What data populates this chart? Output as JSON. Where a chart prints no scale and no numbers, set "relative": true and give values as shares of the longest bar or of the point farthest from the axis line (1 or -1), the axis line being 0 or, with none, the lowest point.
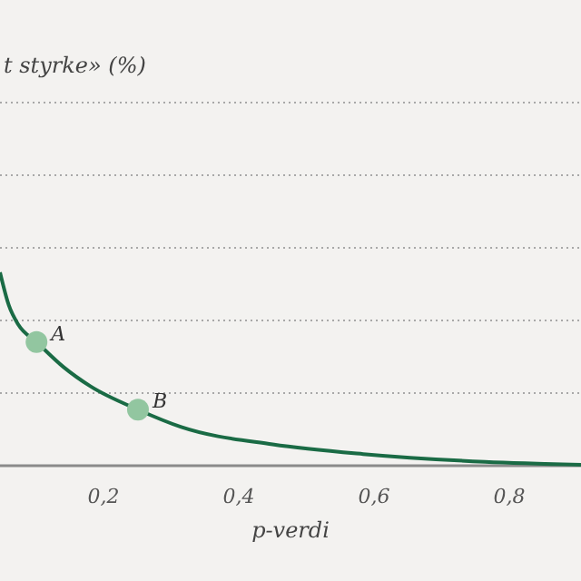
{
  "chart_data": {
    "type": "line",
    "relative": true,
    "xlabel": "p-verdi",
    "xlim": [
      0.047,
      0.906
    ],
    "xticks": [
      {
        "value": 0.2,
        "label": "0,2"
      },
      {
        "value": 0.4,
        "label": "0,4"
      },
      {
        "value": 0.6,
        "label": "0,6"
      },
      {
        "value": 0.8,
        "label": "0,8"
      }
    ],
    "tick_labels": "x",
    "ref_lines": [
      {
        "axis": "y",
        "value": 0.376,
        "color": "#a8a8a8",
        "line_style": "dotted"
      },
      {
        "axis": "y",
        "value": 0.751,
        "color": "#a8a8a8",
        "line_style": "dotted"
      },
      {
        "axis": "y",
        "value": 1.127,
        "color": "#a8a8a8",
        "line_style": "dotted"
      },
      {
        "axis": "y",
        "value": 1.502,
        "color": "#a8a8a8",
        "line_style": "dotted"
      },
      {
        "axis": "y",
        "value": 1.878,
        "color": "#a8a8a8",
        "line_style": "dotted"
      }
    ],
    "series": [
      {
        "color": "#1a6b45",
        "marker": "none",
        "x": [
          0.047,
          0.06,
          0.074,
          0.101,
          0.141,
          0.181,
          0.251,
          0.315,
          0.45,
          0.584,
          0.764,
          0.906
        ],
        "values": [
          1,
          0.83,
          0.73,
          0.64,
          0.51,
          0.41,
          0.29,
          0.2,
          0.11,
          0.06,
          0.02,
          0.005
        ]
      },
      {
        "type": "scatter",
        "color": "#92c6a0",
        "marker": "circle",
        "x": [
          0.101,
          0.251
        ],
        "values": [
          0.64,
          0.29
        ]
      }
    ],
    "annotations": [
      "t styrke» (%)",
      {
        "text": "A",
        "x": 0.101,
        "y": 0.64
      },
      {
        "text": "B",
        "x": 0.251,
        "y": 0.29
      }
    ]
  }
}
